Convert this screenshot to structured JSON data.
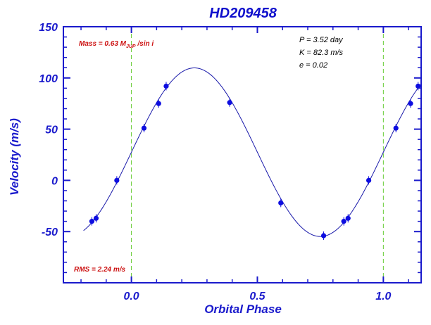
{
  "chart_data": {
    "type": "scatter",
    "title": "HD209458",
    "xlabel": "Orbital Phase",
    "ylabel": "Velocity (m/s)",
    "xlim": [
      -0.27,
      1.15
    ],
    "ylim": [
      -100,
      150
    ],
    "x_ticks": [
      0.0,
      0.5,
      1.0
    ],
    "x_tick_labels": [
      "0.0",
      "0.5",
      "1.0"
    ],
    "y_ticks": [
      -50,
      0,
      50,
      100,
      150
    ],
    "y_tick_labels": [
      "-50",
      "0",
      "50",
      "100",
      "150"
    ],
    "vlines": [
      0.0,
      1.0
    ],
    "annotations": {
      "mass_prefix": "Mass = 0.63 M",
      "mass_subscript": "JUP",
      "mass_suffix": " /sin i",
      "period": "P = 3.52 day",
      "amplitude": "K = 82.3 m/s",
      "eccentricity": "e = 0.02",
      "rms": "RMS = 2.24 m/s"
    },
    "model": {
      "K": 82.3,
      "offset": 27.5,
      "phase_peak": 0.25,
      "x_range": [
        -0.19,
        1.15
      ]
    },
    "points": [
      {
        "x": -0.157,
        "y": -40
      },
      {
        "x": -0.14,
        "y": -37
      },
      {
        "x": -0.058,
        "y": 0
      },
      {
        "x": 0.05,
        "y": 51
      },
      {
        "x": 0.108,
        "y": 75
      },
      {
        "x": 0.138,
        "y": 92
      },
      {
        "x": 0.39,
        "y": 76
      },
      {
        "x": 0.593,
        "y": -22
      },
      {
        "x": 0.763,
        "y": -54
      },
      {
        "x": 0.843,
        "y": -40
      },
      {
        "x": 0.86,
        "y": -37
      },
      {
        "x": 0.942,
        "y": 0
      },
      {
        "x": 1.05,
        "y": 51
      },
      {
        "x": 1.108,
        "y": 75
      },
      {
        "x": 1.138,
        "y": 92
      }
    ],
    "colors": {
      "axis": "#1a1acc",
      "curve": "#1a1aaa",
      "points": "#0d0de0",
      "vline": "#66cc33",
      "annotation_red": "#cc1111"
    }
  }
}
